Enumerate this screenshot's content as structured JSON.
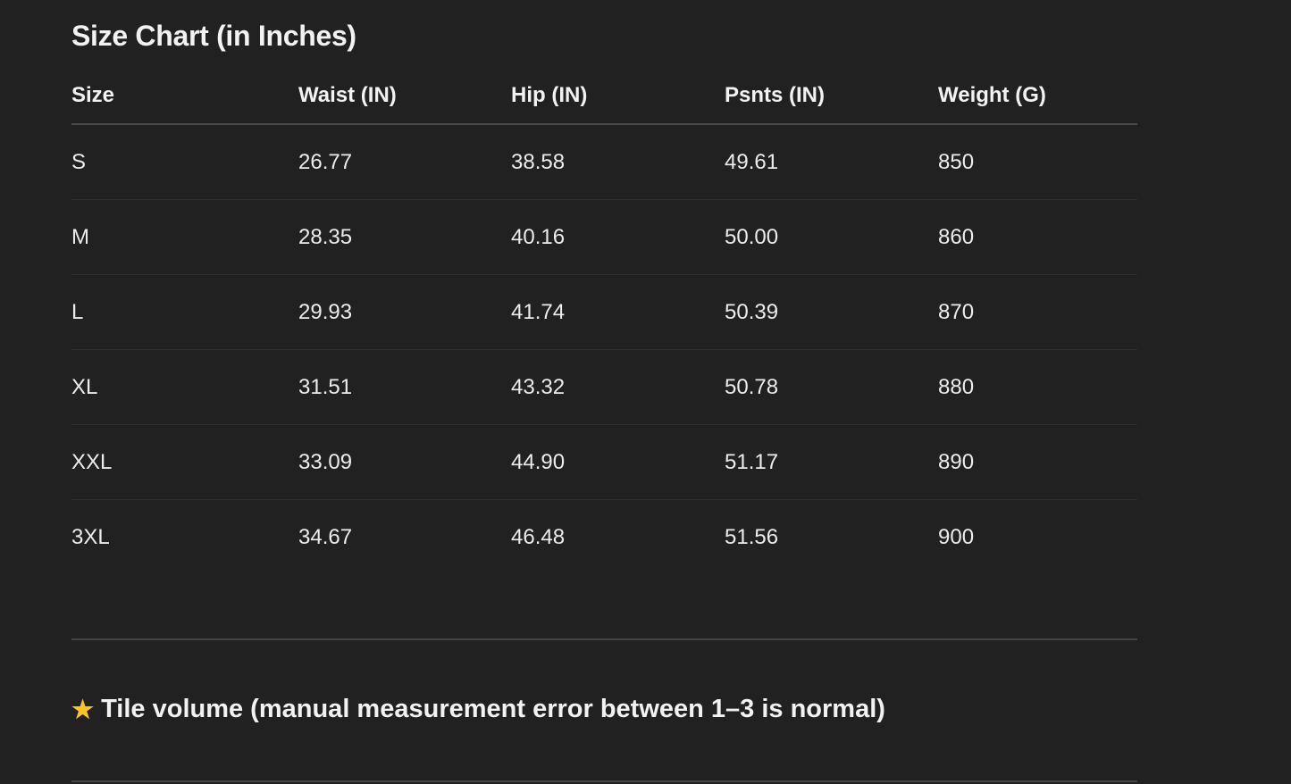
{
  "title": "Size Chart (in Inches)",
  "table": {
    "headers": [
      "Size",
      "Waist (IN)",
      "Hip (IN)",
      "Psnts (IN)",
      "Weight (G)"
    ],
    "rows": [
      [
        "S",
        "26.77",
        "38.58",
        "49.61",
        "850"
      ],
      [
        "M",
        "28.35",
        "40.16",
        "50.00",
        "860"
      ],
      [
        "L",
        "29.93",
        "41.74",
        "50.39",
        "870"
      ],
      [
        "XL",
        "31.51",
        "43.32",
        "50.78",
        "880"
      ],
      [
        "XXL",
        "33.09",
        "44.90",
        "51.17",
        "890"
      ],
      [
        "3XL",
        "34.67",
        "46.48",
        "51.56",
        "900"
      ]
    ]
  },
  "note": {
    "icon": "star-icon",
    "icon_glyph": "★",
    "text": "Tile volume (manual measurement error between 1–3 is normal)"
  },
  "colors": {
    "background": "#212121",
    "text": "#ececec",
    "star": "#f7c325"
  }
}
